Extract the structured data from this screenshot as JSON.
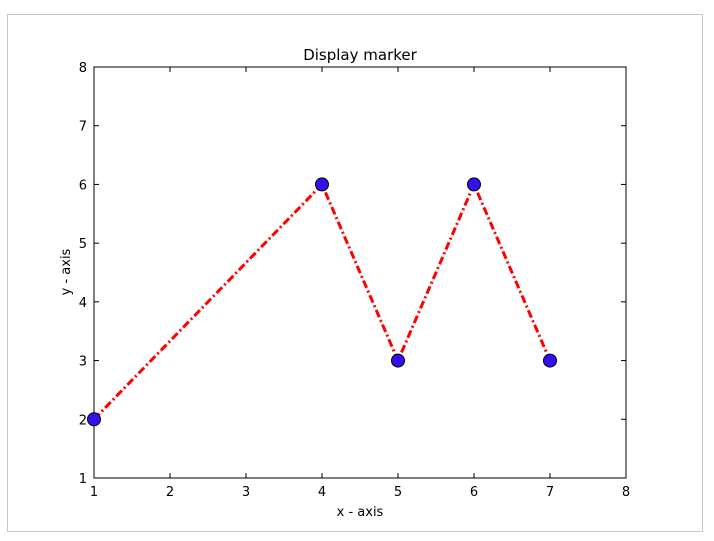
{
  "chart_data": {
    "type": "line",
    "title": "Display marker",
    "xlabel": "x - axis",
    "ylabel": "y - axis",
    "xlim": [
      1,
      8
    ],
    "ylim": [
      1,
      8
    ],
    "xticks": [
      1,
      2,
      3,
      4,
      5,
      6,
      7,
      8
    ],
    "yticks": [
      1,
      2,
      3,
      4,
      5,
      6,
      7,
      8
    ],
    "grid": false,
    "series": [
      {
        "x": [
          1,
          4,
          5,
          6,
          7
        ],
        "y": [
          2,
          6,
          3,
          6,
          3
        ],
        "line_color": "#ff0000",
        "line_style": "dash-dot",
        "marker": "circle",
        "marker_color": "#3311ee"
      }
    ]
  }
}
